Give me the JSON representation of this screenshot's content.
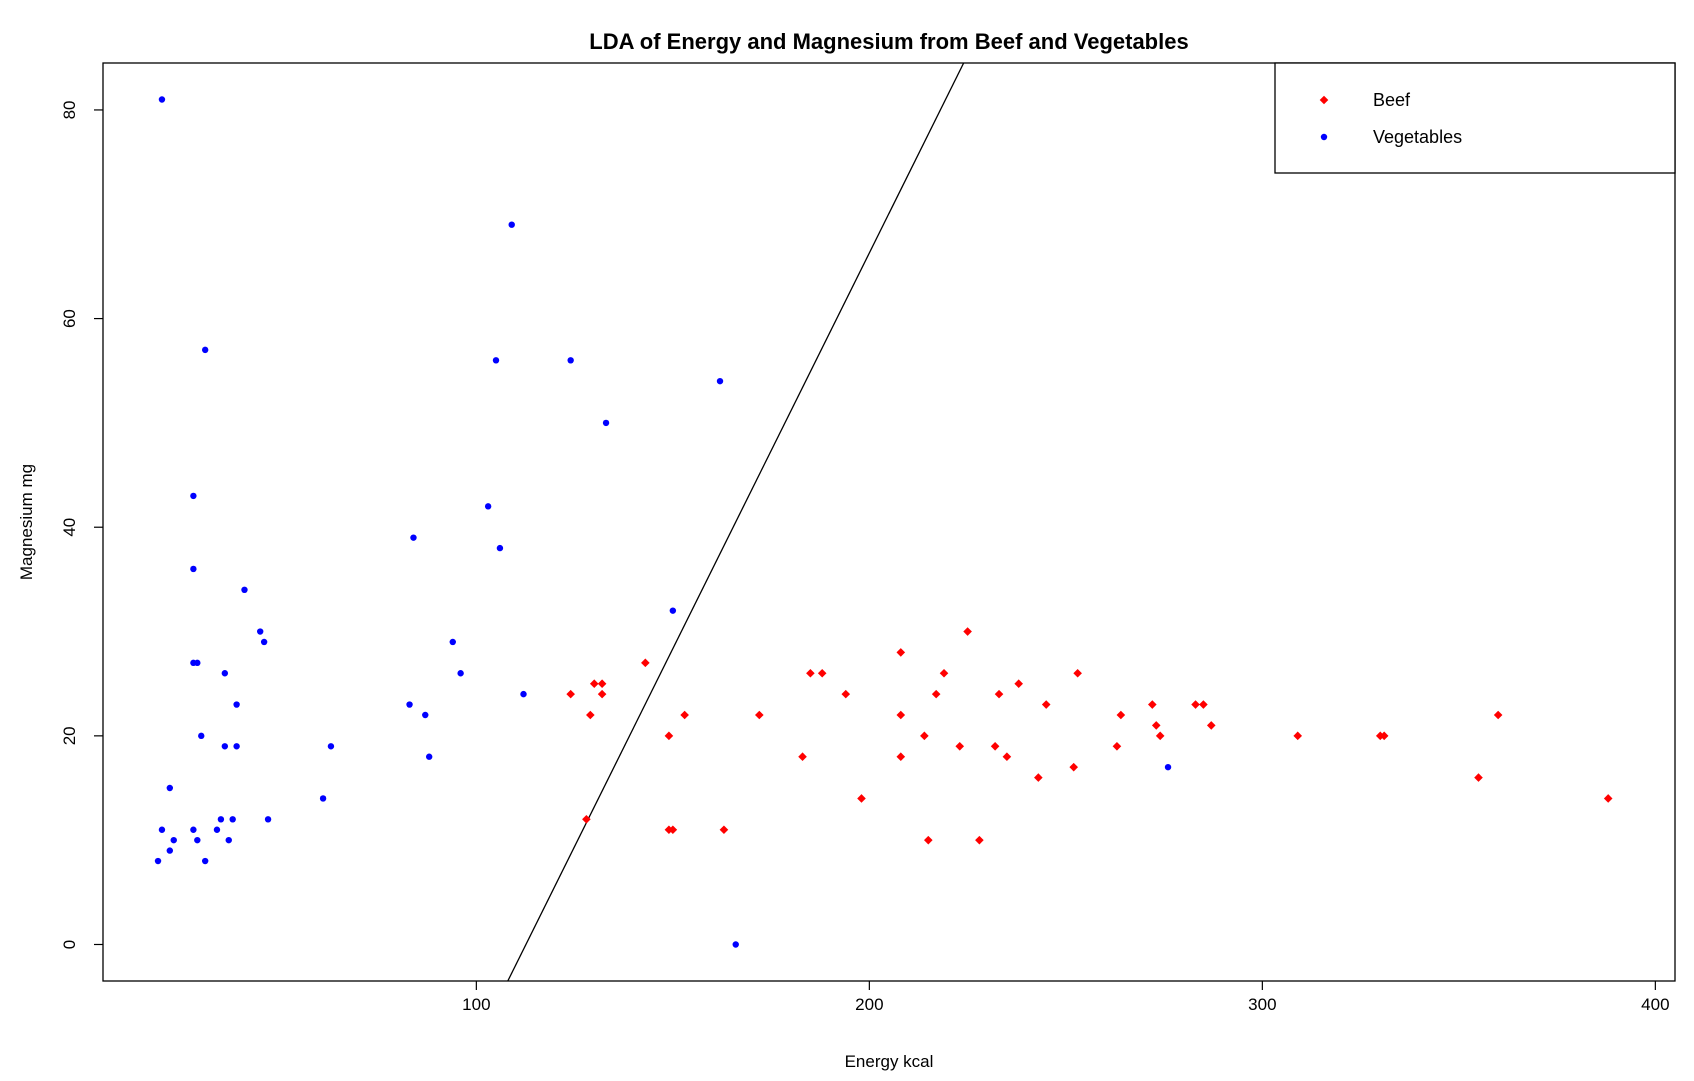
{
  "chart_data": {
    "type": "scatter",
    "title": "LDA of Energy and Magnesium from Beef and Vegetables",
    "xlabel": "Energy kcal",
    "ylabel": "Magnesium mg",
    "xlim": [
      5,
      405
    ],
    "ylim": [
      -3.5,
      84.5
    ],
    "xticks": [
      100,
      200,
      300,
      400
    ],
    "yticks": [
      0,
      20,
      40,
      60,
      80
    ],
    "grid": false,
    "legend_position": "top-right",
    "decision_boundary": {
      "p1": [
        108,
        -3.5
      ],
      "p2": [
        224,
        84.5
      ],
      "color": "#000000"
    },
    "series": [
      {
        "name": "Beef",
        "color": "#ff0000",
        "marker": "diamond",
        "points": [
          [
            124,
            24
          ],
          [
            128,
            12
          ],
          [
            129,
            22
          ],
          [
            130,
            25
          ],
          [
            132,
            25
          ],
          [
            132,
            24
          ],
          [
            143,
            27
          ],
          [
            149,
            20
          ],
          [
            149,
            11
          ],
          [
            150,
            11
          ],
          [
            153,
            22
          ],
          [
            163,
            11
          ],
          [
            172,
            22
          ],
          [
            183,
            18
          ],
          [
            185,
            26
          ],
          [
            188,
            26
          ],
          [
            194,
            24
          ],
          [
            198,
            14
          ],
          [
            208,
            28
          ],
          [
            208,
            22
          ],
          [
            208,
            18
          ],
          [
            214,
            20
          ],
          [
            215,
            10
          ],
          [
            217,
            24
          ],
          [
            219,
            26
          ],
          [
            223,
            19
          ],
          [
            225,
            30
          ],
          [
            228,
            10
          ],
          [
            232,
            19
          ],
          [
            233,
            24
          ],
          [
            235,
            18
          ],
          [
            238,
            25
          ],
          [
            243,
            16
          ],
          [
            245,
            23
          ],
          [
            252,
            17
          ],
          [
            253,
            26
          ],
          [
            263,
            19
          ],
          [
            264,
            22
          ],
          [
            272,
            23
          ],
          [
            273,
            21
          ],
          [
            274,
            20
          ],
          [
            283,
            23
          ],
          [
            285,
            23
          ],
          [
            287,
            21
          ],
          [
            309,
            20
          ],
          [
            330,
            20
          ],
          [
            331,
            20
          ],
          [
            355,
            16
          ],
          [
            360,
            22
          ],
          [
            388,
            14
          ]
        ]
      },
      {
        "name": "Vegetables",
        "color": "#0000ff",
        "marker": "circle",
        "points": [
          [
            20,
            81
          ],
          [
            31,
            57
          ],
          [
            28,
            43
          ],
          [
            28,
            36
          ],
          [
            28,
            27
          ],
          [
            29,
            27
          ],
          [
            30,
            20
          ],
          [
            22,
            15
          ],
          [
            36,
            26
          ],
          [
            36,
            19
          ],
          [
            39,
            23
          ],
          [
            39,
            19
          ],
          [
            41,
            34
          ],
          [
            45,
            30
          ],
          [
            46,
            29
          ],
          [
            47,
            12
          ],
          [
            38,
            12
          ],
          [
            37,
            10
          ],
          [
            35,
            12
          ],
          [
            34,
            11
          ],
          [
            31,
            8
          ],
          [
            29,
            10
          ],
          [
            28,
            11
          ],
          [
            23,
            10
          ],
          [
            22,
            9
          ],
          [
            20,
            11
          ],
          [
            19,
            8
          ],
          [
            61,
            14
          ],
          [
            63,
            19
          ],
          [
            83,
            23
          ],
          [
            84,
            39
          ],
          [
            87,
            22
          ],
          [
            88,
            18
          ],
          [
            94,
            29
          ],
          [
            96,
            26
          ],
          [
            103,
            42
          ],
          [
            105,
            56
          ],
          [
            106,
            38
          ],
          [
            109,
            69
          ],
          [
            112,
            24
          ],
          [
            124,
            56
          ],
          [
            133,
            50
          ],
          [
            150,
            32
          ],
          [
            162,
            54
          ],
          [
            166,
            0
          ],
          [
            276,
            17
          ]
        ]
      }
    ]
  }
}
